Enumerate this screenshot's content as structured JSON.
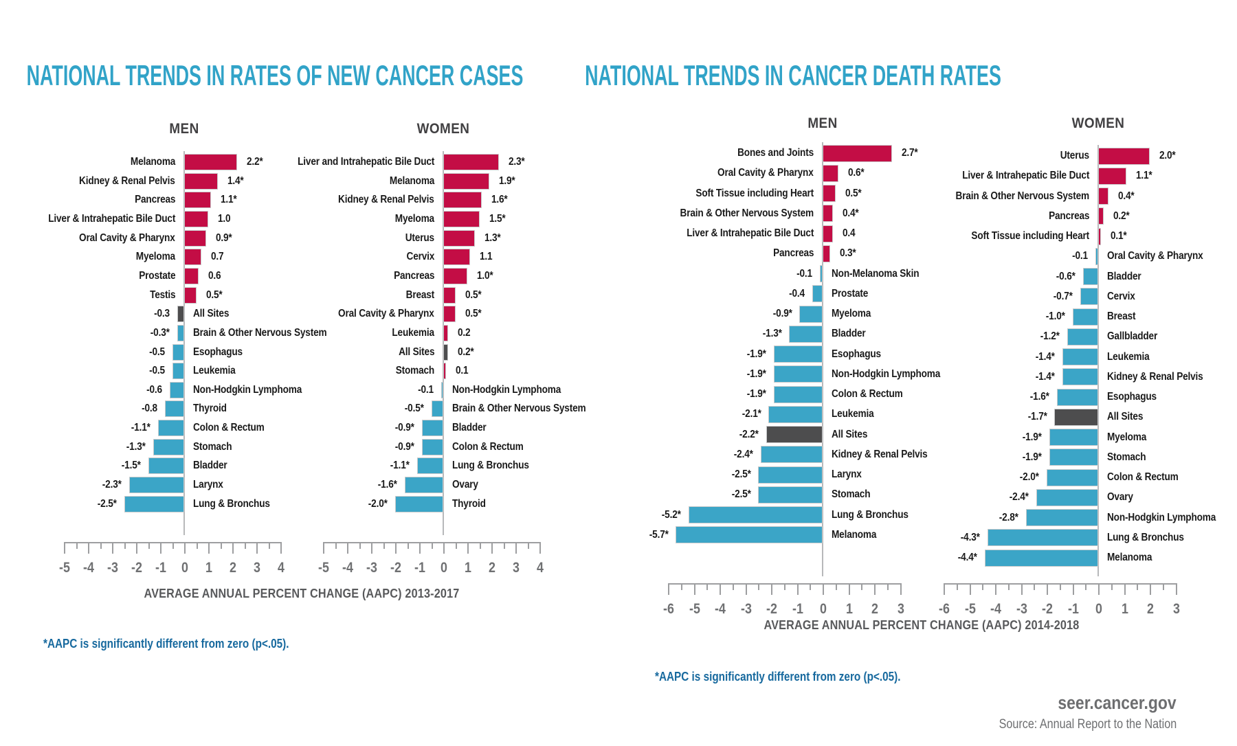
{
  "page": {
    "left_chart_title": "NATIONAL TRENDS IN RATES OF NEW CANCER CASES",
    "right_chart_title": "NATIONAL TRENDS IN CANCER DEATH RATES",
    "left_axis_label": "AVERAGE ANNUAL PERCENT CHANGE (AAPC) 2013-2017",
    "right_axis_label": "AVERAGE ANNUAL PERCENT CHANGE (AAPC) 2014-2018",
    "left_footnote": "*AAPC is significantly different from zero (p<.05).",
    "right_footnote": "*AAPC is significantly different from zero (p<.05).",
    "site": "seer.cancer.gov",
    "source": "Source: Annual Report to the Nation",
    "colors": {
      "increase_bar": "#C30D45",
      "decrease_bar": "#3BA5C7",
      "all_sites_bar": "#4D4D4E",
      "title_teal": "#31A3C8",
      "footnote_blue": "#17699E"
    }
  },
  "chart_data": [
    {
      "type": "bar",
      "orientation": "horizontal",
      "title": "NATIONAL TRENDS IN RATES OF NEW CANCER CASES",
      "group": "MEN",
      "xlabel": "AVERAGE ANNUAL PERCENT CHANGE (AAPC) 2013-2017",
      "xlim": [
        -5,
        4
      ],
      "xticks": [
        -5,
        -4,
        -3,
        -2,
        -1,
        0,
        1,
        2,
        3,
        4
      ],
      "highlight_category": "All Sites",
      "categories": [
        "Melanoma",
        "Kidney & Renal Pelvis",
        "Pancreas",
        "Liver & Intrahepatic Bile Duct",
        "Oral Cavity & Pharynx",
        "Myeloma",
        "Prostate",
        "Testis",
        "All Sites",
        "Brain & Other Nervous System",
        "Esophagus",
        "Leukemia",
        "Non-Hodgkin Lymphoma",
        "Thyroid",
        "Colon & Rectum",
        "Stomach",
        "Bladder",
        "Larynx",
        "Lung & Bronchus"
      ],
      "values": [
        2.2,
        1.4,
        1.1,
        1.0,
        0.9,
        0.7,
        0.6,
        0.5,
        -0.3,
        -0.3,
        -0.5,
        -0.5,
        -0.6,
        -0.8,
        -1.1,
        -1.3,
        -1.5,
        -2.3,
        -2.5
      ],
      "value_labels": [
        "2.2*",
        "1.4*",
        "1.1*",
        "1.0",
        "0.9*",
        "0.7",
        "0.6",
        "0.5*",
        "-0.3",
        "-0.3*",
        "-0.5",
        "-0.5",
        "-0.6",
        "-0.8",
        "-1.1*",
        "-1.3*",
        "-1.5*",
        "-2.3*",
        "-2.5*"
      ]
    },
    {
      "type": "bar",
      "orientation": "horizontal",
      "title": "NATIONAL TRENDS IN RATES OF NEW CANCER CASES",
      "group": "WOMEN",
      "xlabel": "AVERAGE ANNUAL PERCENT CHANGE (AAPC) 2013-2017",
      "xlim": [
        -5,
        4
      ],
      "xticks": [
        -5,
        -4,
        -3,
        -2,
        -1,
        0,
        1,
        2,
        3,
        4
      ],
      "highlight_category": "All Sites",
      "categories": [
        "Liver and Intrahepatic Bile Duct",
        "Melanoma",
        "Kidney & Renal Pelvis",
        "Myeloma",
        "Uterus",
        "Cervix",
        "Pancreas",
        "Breast",
        "Oral Cavity & Pharynx",
        "Leukemia",
        "All Sites",
        "Stomach",
        "Non-Hodgkin Lymphoma",
        "Brain & Other Nervous System",
        "Bladder",
        "Colon & Rectum",
        "Lung & Bronchus",
        "Ovary",
        "Thyroid"
      ],
      "values": [
        2.3,
        1.9,
        1.6,
        1.5,
        1.3,
        1.1,
        1.0,
        0.5,
        0.5,
        0.2,
        0.2,
        0.1,
        -0.1,
        -0.5,
        -0.9,
        -0.9,
        -1.1,
        -1.6,
        -2.0
      ],
      "value_labels": [
        "2.3*",
        "1.9*",
        "1.6*",
        "1.5*",
        "1.3*",
        "1.1",
        "1.0*",
        "0.5*",
        "0.5*",
        "0.2",
        "0.2*",
        "0.1",
        "-0.1",
        "-0.5*",
        "-0.9*",
        "-0.9*",
        "-1.1*",
        "-1.6*",
        "-2.0*"
      ]
    },
    {
      "type": "bar",
      "orientation": "horizontal",
      "title": "NATIONAL TRENDS IN CANCER DEATH RATES",
      "group": "MEN",
      "xlabel": "AVERAGE ANNUAL PERCENT CHANGE (AAPC) 2014-2018",
      "xlim": [
        -6,
        3
      ],
      "xticks": [
        -6,
        -5,
        -4,
        -3,
        -2,
        -1,
        0,
        1,
        2,
        3
      ],
      "highlight_category": "All Sites",
      "categories": [
        "Bones and Joints",
        "Oral Cavity & Pharynx",
        "Soft Tissue including Heart",
        "Brain & Other Nervous System",
        "Liver & Intrahepatic Bile Duct",
        "Pancreas",
        "Non-Melanoma Skin",
        "Prostate",
        "Myeloma",
        "Bladder",
        "Esophagus",
        "Non-Hodgkin Lymphoma",
        "Colon & Rectum",
        "Leukemia",
        "All Sites",
        "Kidney & Renal Pelvis",
        "Larynx",
        "Stomach",
        "Lung & Bronchus",
        "Melanoma"
      ],
      "values": [
        2.7,
        0.6,
        0.5,
        0.4,
        0.4,
        0.3,
        -0.1,
        -0.4,
        -0.9,
        -1.3,
        -1.9,
        -1.9,
        -1.9,
        -2.1,
        -2.2,
        -2.4,
        -2.5,
        -2.5,
        -5.2,
        -5.7
      ],
      "value_labels": [
        "2.7*",
        "0.6*",
        "0.5*",
        "0.4*",
        "0.4",
        "0.3*",
        "-0.1",
        "-0.4",
        "-0.9*",
        "-1.3*",
        "-1.9*",
        "-1.9*",
        "-1.9*",
        "-2.1*",
        "-2.2*",
        "-2.4*",
        "-2.5*",
        "-2.5*",
        "-5.2*",
        "-5.7*"
      ]
    },
    {
      "type": "bar",
      "orientation": "horizontal",
      "title": "NATIONAL TRENDS IN CANCER DEATH RATES",
      "group": "WOMEN",
      "xlabel": "AVERAGE ANNUAL PERCENT CHANGE (AAPC) 2014-2018",
      "xlim": [
        -6,
        3
      ],
      "xticks": [
        -6,
        -5,
        -4,
        -3,
        -2,
        -1,
        0,
        1,
        2,
        3
      ],
      "highlight_category": "All Sites",
      "categories": [
        "Uterus",
        "Liver & Intrahepatic Bile Duct",
        "Brain & Other Nervous System",
        "Pancreas",
        "Soft Tissue including Heart",
        "Oral Cavity & Pharynx",
        "Bladder",
        "Cervix",
        "Breast",
        "Gallbladder",
        "Leukemia",
        "Kidney & Renal Pelvis",
        "Esophagus",
        "All Sites",
        "Myeloma",
        "Stomach",
        "Colon & Rectum",
        "Ovary",
        "Non-Hodgkin Lymphoma",
        "Lung & Bronchus",
        "Melanoma"
      ],
      "values": [
        2.0,
        1.1,
        0.4,
        0.2,
        0.1,
        -0.1,
        -0.6,
        -0.7,
        -1.0,
        -1.2,
        -1.4,
        -1.4,
        -1.6,
        -1.7,
        -1.9,
        -1.9,
        -2.0,
        -2.4,
        -2.8,
        -4.3,
        -4.4
      ],
      "value_labels": [
        "2.0*",
        "1.1*",
        "0.4*",
        "0.2*",
        "0.1*",
        "-0.1",
        "-0.6*",
        "-0.7*",
        "-1.0*",
        "-1.2*",
        "-1.4*",
        "-1.4*",
        "-1.6*",
        "-1.7*",
        "-1.9*",
        "-1.9*",
        "-2.0*",
        "-2.4*",
        "-2.8*",
        "-4.3*",
        "-4.4*"
      ]
    }
  ]
}
